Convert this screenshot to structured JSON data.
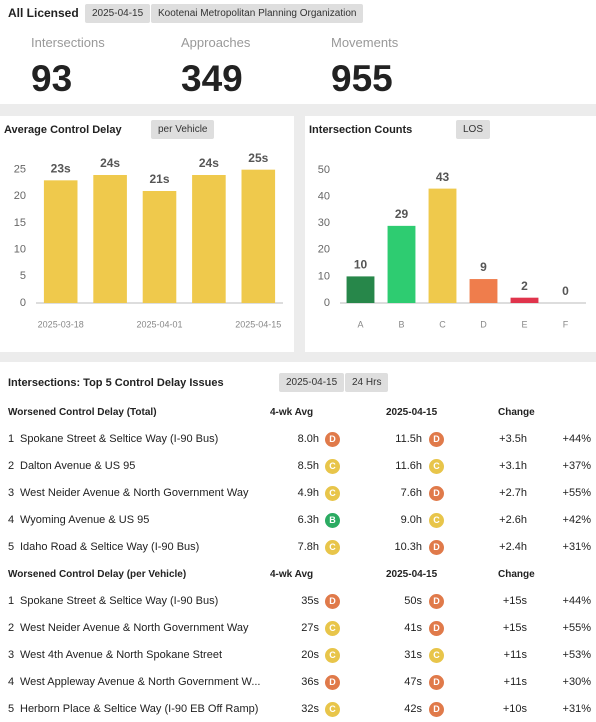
{
  "header": {
    "title": "All Licensed",
    "date": "2025-04-15",
    "organization": "Kootenai Metropolitan Planning Organization"
  },
  "stats": [
    {
      "label": "Intersections",
      "value": "93"
    },
    {
      "label": "Approaches",
      "value": "349"
    },
    {
      "label": "Movements",
      "value": "955"
    }
  ],
  "chart_data": [
    {
      "type": "bar",
      "title": "Average Control Delay",
      "toggle": "per Vehicle",
      "categories": [
        "2025-03-18",
        null,
        "2025-04-01",
        null,
        "2025-04-15"
      ],
      "values": [
        23,
        24,
        21,
        24,
        25
      ],
      "value_labels": [
        "23s",
        "24s",
        "21s",
        "24s",
        "25s"
      ],
      "color": "#efc94c",
      "ylim": [
        0,
        27
      ],
      "yticks": [
        0,
        5,
        10,
        15,
        20,
        25
      ]
    },
    {
      "type": "bar",
      "title": "Intersection Counts",
      "toggle": "LOS",
      "categories": [
        "A",
        "B",
        "C",
        "D",
        "E",
        "F"
      ],
      "values": [
        10,
        29,
        43,
        9,
        2,
        0
      ],
      "colors": [
        "#27874a",
        "#2ecc71",
        "#efc94c",
        "#ef7d4c",
        "#e0344c",
        "#cccccc"
      ],
      "ylim": [
        0,
        50
      ],
      "yticks": [
        0,
        10,
        20,
        30,
        40,
        50
      ]
    }
  ],
  "table": {
    "title": "Intersections: Top 5 Control Delay Issues",
    "filters": [
      "2025-04-15",
      "24 Hrs"
    ],
    "sections": [
      {
        "title": "Worsened Control Delay (Total)",
        "columns": [
          "4-wk Avg",
          "2025-04-15",
          "Change"
        ],
        "rows": [
          [
            "1",
            "Spokane Street & Seltice Way (I-90 Bus)",
            "8.0h",
            "D",
            "11.5h",
            "D",
            "+3.5h",
            "+44%"
          ],
          [
            "2",
            "Dalton Avenue & US 95",
            "8.5h",
            "C",
            "11.6h",
            "C",
            "+3.1h",
            "+37%"
          ],
          [
            "3",
            "West Neider Avenue & North Government Way",
            "4.9h",
            "C",
            "7.6h",
            "D",
            "+2.7h",
            "+55%"
          ],
          [
            "4",
            "Wyoming Avenue & US 95",
            "6.3h",
            "B",
            "9.0h",
            "C",
            "+2.6h",
            "+42%"
          ],
          [
            "5",
            "Idaho Road & Seltice Way (I-90 Bus)",
            "7.8h",
            "C",
            "10.3h",
            "D",
            "+2.4h",
            "+31%"
          ]
        ]
      },
      {
        "title": "Worsened Control Delay (per Vehicle)",
        "columns": [
          "4-wk Avg",
          "2025-04-15",
          "Change"
        ],
        "rows": [
          [
            "1",
            "Spokane Street & Seltice Way (I-90 Bus)",
            "35s",
            "D",
            "50s",
            "D",
            "+15s",
            "+44%"
          ],
          [
            "2",
            "West Neider Avenue & North Government Way",
            "27s",
            "C",
            "41s",
            "D",
            "+15s",
            "+55%"
          ],
          [
            "3",
            "West 4th Avenue & North Spokane Street",
            "20s",
            "C",
            "31s",
            "C",
            "+11s",
            "+53%"
          ],
          [
            "4",
            "West Appleway Avenue & North Government W...",
            "36s",
            "D",
            "47s",
            "D",
            "+11s",
            "+30%"
          ],
          [
            "5",
            "Herborn Place & Seltice Way (I-90 EB Off Ramp)",
            "32s",
            "C",
            "42s",
            "D",
            "+10s",
            "+31%"
          ]
        ]
      }
    ]
  }
}
